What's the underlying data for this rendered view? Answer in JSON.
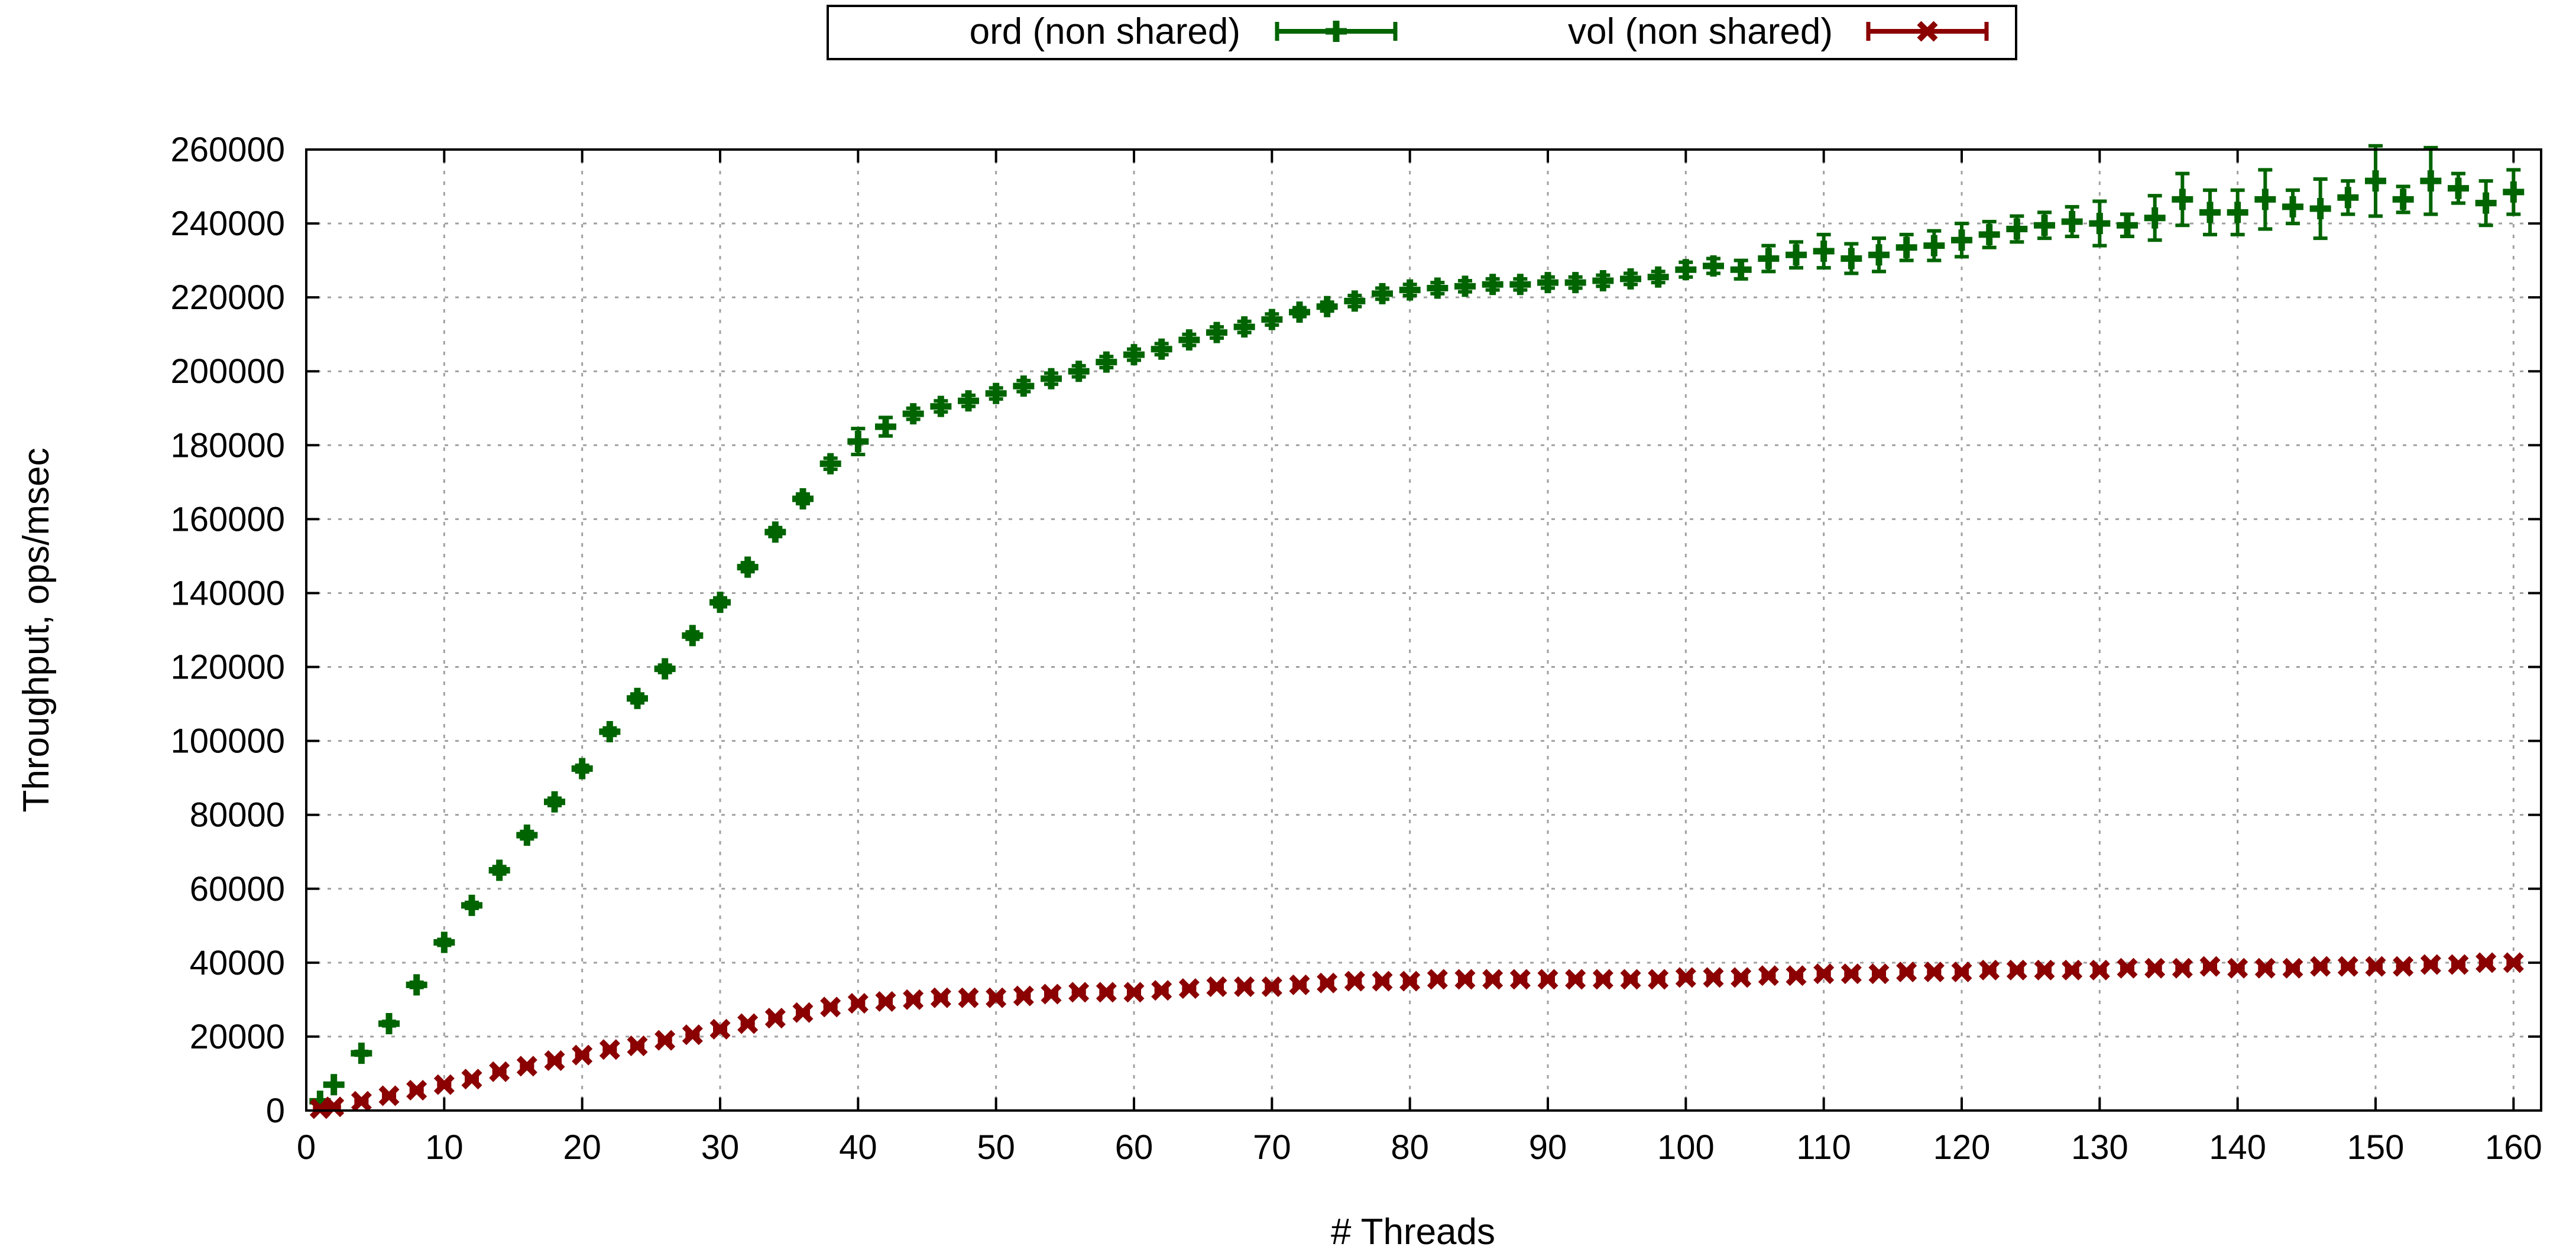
{
  "chart_data": {
    "type": "scatter",
    "title": "",
    "xlabel": "# Threads",
    "ylabel": "Throughput, ops/msec",
    "xlim": [
      0,
      162
    ],
    "ylim": [
      0,
      260000
    ],
    "x_ticks": [
      0,
      10,
      20,
      30,
      40,
      50,
      60,
      70,
      80,
      90,
      100,
      110,
      120,
      130,
      140,
      150,
      160
    ],
    "y_ticks": [
      0,
      20000,
      40000,
      60000,
      80000,
      100000,
      120000,
      140000,
      160000,
      180000,
      200000,
      220000,
      240000,
      260000
    ],
    "grid": true,
    "legend_position": "top-center",
    "colors": {
      "ord": "#006400",
      "vol": "#8b0000"
    },
    "series": [
      {
        "name": "ord (non shared)",
        "marker": "plus",
        "x": [
          1,
          2,
          4,
          6,
          8,
          10,
          12,
          14,
          16,
          18,
          20,
          22,
          24,
          26,
          28,
          30,
          32,
          34,
          36,
          38,
          40,
          42,
          44,
          46,
          48,
          50,
          52,
          54,
          56,
          58,
          60,
          62,
          64,
          66,
          68,
          70,
          72,
          74,
          76,
          78,
          80,
          82,
          84,
          86,
          88,
          90,
          92,
          94,
          96,
          98,
          100,
          102,
          104,
          106,
          108,
          110,
          112,
          114,
          116,
          118,
          120,
          122,
          124,
          126,
          128,
          130,
          132,
          134,
          136,
          138,
          140,
          142,
          144,
          146,
          148,
          150,
          152,
          154,
          156,
          158,
          160
        ],
        "y": [
          2500,
          7000,
          15500,
          23500,
          34000,
          45500,
          55500,
          65000,
          74500,
          83500,
          92500,
          102500,
          111500,
          119500,
          128500,
          137500,
          147000,
          156500,
          165500,
          175000,
          181000,
          185000,
          188500,
          190500,
          192000,
          194000,
          196000,
          198000,
          200000,
          202500,
          204500,
          206000,
          208500,
          210500,
          212000,
          214000,
          216000,
          217500,
          219000,
          221000,
          222000,
          222500,
          223000,
          223500,
          223500,
          224000,
          224000,
          224500,
          225000,
          225500,
          227500,
          228500,
          227500,
          230500,
          231500,
          232500,
          230500,
          231500,
          233500,
          234000,
          235500,
          237000,
          238500,
          239500,
          240500,
          240000,
          239500,
          241500,
          246500,
          243000,
          243000,
          246500,
          244500,
          244000,
          247000,
          251500,
          246500,
          251500,
          249500,
          245500,
          248500
        ],
        "err": [
          300,
          300,
          500,
          600,
          700,
          800,
          800,
          1000,
          1000,
          1000,
          900,
          1000,
          1200,
          1000,
          1000,
          1200,
          1200,
          1200,
          1300,
          1500,
          3500,
          2500,
          1500,
          1500,
          1500,
          1500,
          1500,
          1500,
          1500,
          1500,
          1500,
          1500,
          1500,
          1500,
          1500,
          1500,
          1200,
          1200,
          1500,
          1500,
          1500,
          1500,
          1500,
          1500,
          1500,
          1500,
          1500,
          1500,
          1500,
          1500,
          2000,
          2000,
          2500,
          3500,
          3500,
          4500,
          4000,
          4500,
          3500,
          4000,
          4500,
          3500,
          3500,
          3500,
          4000,
          6000,
          3000,
          6000,
          7000,
          6000,
          6000,
          8000,
          4500,
          8000,
          4500,
          9500,
          3500,
          9000,
          4000,
          6000,
          6000
        ]
      },
      {
        "name": "vol (non shared)",
        "marker": "cross",
        "x": [
          1,
          2,
          4,
          6,
          8,
          10,
          12,
          14,
          16,
          18,
          20,
          22,
          24,
          26,
          28,
          30,
          32,
          34,
          36,
          38,
          40,
          42,
          44,
          46,
          48,
          50,
          52,
          54,
          56,
          58,
          60,
          62,
          64,
          66,
          68,
          70,
          72,
          74,
          76,
          78,
          80,
          82,
          84,
          86,
          88,
          90,
          92,
          94,
          96,
          98,
          100,
          102,
          104,
          106,
          108,
          110,
          112,
          114,
          116,
          118,
          120,
          122,
          124,
          126,
          128,
          130,
          132,
          134,
          136,
          138,
          140,
          142,
          144,
          146,
          148,
          150,
          152,
          154,
          156,
          158,
          160
        ],
        "y": [
          500,
          1000,
          2500,
          4000,
          5500,
          7000,
          8500,
          10500,
          12000,
          13500,
          15000,
          16500,
          17500,
          19000,
          20500,
          22000,
          23500,
          25000,
          26500,
          28000,
          29000,
          29500,
          30000,
          30500,
          30500,
          30500,
          31000,
          31500,
          32000,
          32000,
          32000,
          32500,
          33000,
          33500,
          33500,
          33500,
          34000,
          34500,
          35000,
          35000,
          35000,
          35500,
          35500,
          35500,
          35500,
          35500,
          35500,
          35500,
          35500,
          35500,
          36000,
          36000,
          36000,
          36500,
          36500,
          37000,
          37000,
          37000,
          37500,
          37500,
          37500,
          38000,
          38000,
          38000,
          38000,
          38000,
          38500,
          38500,
          38500,
          39000,
          38500,
          38500,
          38500,
          39000,
          39000,
          39000,
          39000,
          39500,
          39500,
          40000,
          40000
        ],
        "err": [
          200,
          200,
          300,
          300,
          300,
          300,
          300,
          300,
          300,
          300,
          300,
          300,
          300,
          300,
          300,
          300,
          300,
          300,
          300,
          300,
          300,
          300,
          300,
          300,
          300,
          300,
          300,
          300,
          300,
          300,
          300,
          300,
          300,
          300,
          300,
          300,
          300,
          300,
          300,
          300,
          300,
          300,
          300,
          300,
          300,
          300,
          300,
          300,
          300,
          300,
          300,
          300,
          300,
          300,
          300,
          300,
          300,
          300,
          300,
          300,
          300,
          300,
          300,
          300,
          300,
          300,
          300,
          300,
          300,
          300,
          300,
          300,
          300,
          300,
          300,
          300,
          300,
          300,
          300,
          300,
          300
        ]
      }
    ]
  }
}
